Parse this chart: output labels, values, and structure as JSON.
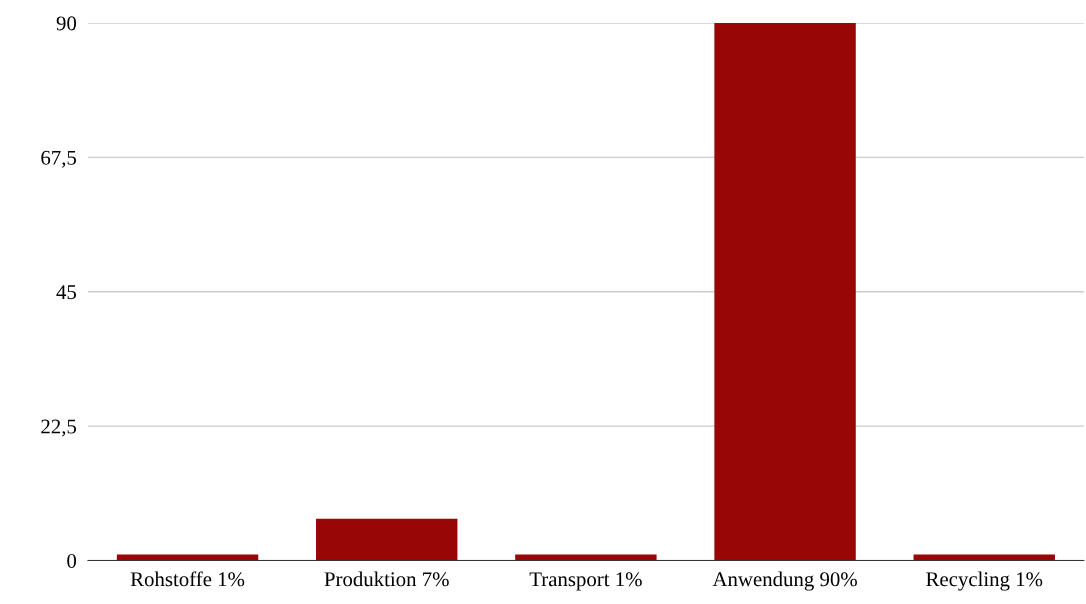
{
  "chart_data": {
    "type": "bar",
    "categories": [
      "Rohstoffe 1%",
      "Produktion 7%",
      "Transport 1%",
      "Anwendung 90%",
      "Recycling 1%"
    ],
    "values": [
      1,
      7,
      1,
      90,
      1
    ],
    "color": "#990606",
    "ylim": [
      0,
      90
    ],
    "yticks": [
      0,
      {
        "value": 22.5,
        "label": "22,5"
      },
      45,
      {
        "value": 67.5,
        "label": "67,5"
      },
      90
    ],
    "grid": "y"
  }
}
